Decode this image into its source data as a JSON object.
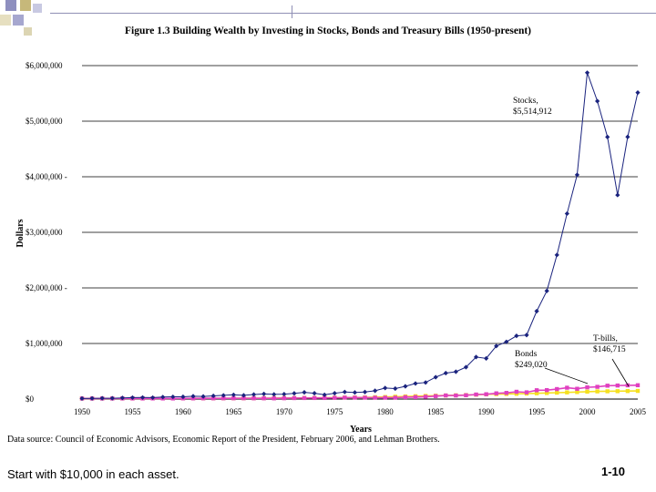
{
  "chart_data": {
    "type": "line",
    "title": "Figure 1.3 Building Wealth by Investing in Stocks, Bonds and Treasury Bills (1950-present)",
    "xlabel": "Years",
    "ylabel": "Dollars",
    "xlim": [
      1950,
      2005
    ],
    "ylim": [
      0,
      6000000
    ],
    "x_ticks": [
      1950,
      1955,
      1960,
      1965,
      1970,
      1975,
      1980,
      1985,
      1990,
      1995,
      2000,
      2005
    ],
    "y_ticks": [
      0,
      1000000,
      2000000,
      3000000,
      4000000,
      5000000,
      6000000
    ],
    "y_tick_labels": [
      "$0",
      "$1,000,000",
      "$2,000,000 -",
      "$3,000,000",
      "$4,000,000 -",
      "$5,000,000",
      "$6,000,000"
    ],
    "x": [
      1950,
      1951,
      1952,
      1953,
      1954,
      1955,
      1956,
      1957,
      1958,
      1959,
      1960,
      1961,
      1962,
      1963,
      1964,
      1965,
      1966,
      1967,
      1968,
      1969,
      1970,
      1971,
      1972,
      1973,
      1974,
      1975,
      1976,
      1977,
      1978,
      1979,
      1980,
      1981,
      1982,
      1983,
      1984,
      1985,
      1986,
      1987,
      1988,
      1989,
      1990,
      1991,
      1992,
      1993,
      1994,
      1995,
      1996,
      1997,
      1998,
      1999,
      2000,
      2001,
      2002,
      2003,
      2004,
      2005
    ],
    "series": [
      {
        "name": "Stocks",
        "color": "#1a237e",
        "marker": "diamond",
        "values": [
          10000,
          12000,
          14000,
          14500,
          21000,
          26000,
          28000,
          26000,
          36000,
          40000,
          41000,
          51000,
          47000,
          58000,
          67000,
          76000,
          68000,
          82000,
          92000,
          85000,
          89000,
          102000,
          121000,
          104000,
          77000,
          104000,
          128000,
          119000,
          127000,
          150000,
          199000,
          189000,
          230000,
          280000,
          298000,
          394000,
          467000,
          492000,
          574000,
          756000,
          732000,
          954000,
          1030000,
          1137000,
          1152000,
          1582000,
          1946000,
          2593000,
          3337000,
          4034000,
          5872000,
          5361000,
          4715000,
          3671000,
          4717000,
          5514912
        ]
      },
      {
        "name": "Bonds",
        "color": "#e040c0",
        "marker": "square",
        "values": [
          10000,
          10000,
          10200,
          10400,
          11100,
          11000,
          10700,
          11400,
          11000,
          10800,
          12100,
          12300,
          13000,
          13200,
          13700,
          13800,
          14300,
          13400,
          13500,
          12800,
          14900,
          17300,
          18600,
          18900,
          19200,
          21900,
          25600,
          25300,
          25200,
          24400,
          24300,
          24400,
          34000,
          36000,
          42000,
          53000,
          65000,
          64000,
          69000,
          82000,
          87000,
          103000,
          111000,
          131000,
          121000,
          159000,
          161000,
          180000,
          204000,
          185000,
          211000,
          220000,
          241000,
          244000,
          247000,
          249020
        ]
      },
      {
        "name": "T-bills",
        "color": "#f5e020",
        "marker": "square",
        "values": [
          10000,
          10200,
          10300,
          10500,
          10600,
          10800,
          11100,
          11500,
          11700,
          12100,
          12400,
          12700,
          13000,
          13400,
          13900,
          14400,
          15100,
          15700,
          16500,
          17600,
          18700,
          19500,
          20300,
          21800,
          24000,
          25400,
          26800,
          28200,
          30300,
          33500,
          37300,
          42700,
          47100,
          51500,
          56600,
          60900,
          64600,
          68100,
          72400,
          78800,
          84300,
          88900,
          92000,
          94800,
          98600,
          104000,
          109000,
          115000,
          120000,
          126000,
          133000,
          138000,
          140000,
          142000,
          144000,
          146715
        ]
      }
    ],
    "annotations": [
      {
        "lines": [
          "Stocks,",
          "$5,514,912"
        ],
        "series": "Stocks"
      },
      {
        "lines": [
          "T-bills,",
          "$146,715"
        ],
        "series": "T-bills"
      },
      {
        "lines": [
          "Bonds",
          "$249,020"
        ],
        "series": "Bonds"
      }
    ]
  },
  "footnote": "Data source: Council of Economic Advisors, Economic Report of the President, February 2006, and Lehman Brothers.",
  "caption": "Start with $10,000 in each asset.",
  "page_number": "1-10"
}
